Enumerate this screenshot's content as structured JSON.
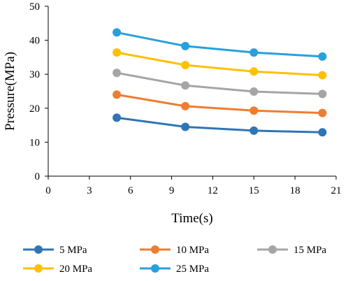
{
  "chart_data": {
    "type": "line",
    "xlabel": "Time(s)",
    "ylabel": "Pressure(MPa)",
    "xlim": [
      0,
      21
    ],
    "ylim": [
      0,
      50
    ],
    "xticks": [
      0,
      3,
      6,
      9,
      12,
      15,
      18,
      21
    ],
    "yticks": [
      0,
      10,
      20,
      30,
      40,
      50
    ],
    "grid": false,
    "legend_position": "bottom",
    "x": [
      5,
      10,
      15,
      20
    ],
    "series": [
      {
        "name": "5 MPa",
        "color": "#2e75b6",
        "values": [
          17.2,
          14.5,
          13.4,
          12.9
        ]
      },
      {
        "name": "10 MPa",
        "color": "#ed7d31",
        "values": [
          24.0,
          20.6,
          19.3,
          18.6
        ]
      },
      {
        "name": "15 MPa",
        "color": "#a5a5a5",
        "values": [
          30.4,
          26.7,
          24.9,
          24.2
        ]
      },
      {
        "name": "20 MPa",
        "color": "#ffc000",
        "values": [
          36.4,
          32.7,
          30.8,
          29.7
        ]
      },
      {
        "name": "25 MPa",
        "color": "#28a0dc",
        "values": [
          42.3,
          38.3,
          36.4,
          35.2
        ]
      }
    ]
  }
}
